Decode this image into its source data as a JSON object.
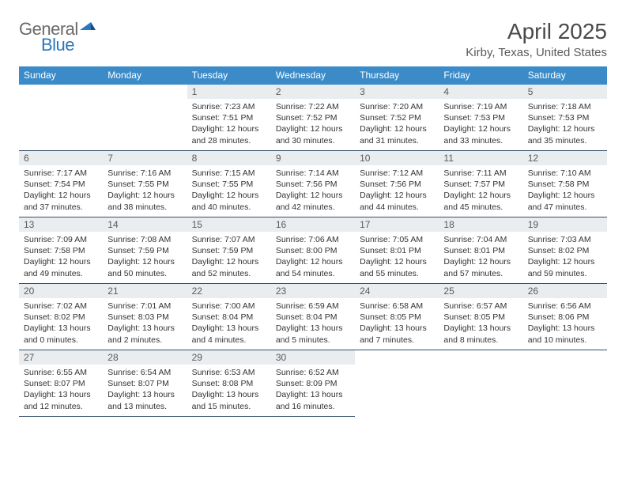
{
  "brand": {
    "part1": "General",
    "part2": "Blue"
  },
  "title": "April 2025",
  "location": "Kirby, Texas, United States",
  "colors": {
    "header_bg": "#3b8bc9",
    "header_text": "#ffffff",
    "daynum_bg": "#e9edf0",
    "border": "#344e6a",
    "logo_gray": "#6a6a6a",
    "logo_blue": "#2a77bb"
  },
  "weekdays": [
    "Sunday",
    "Monday",
    "Tuesday",
    "Wednesday",
    "Thursday",
    "Friday",
    "Saturday"
  ],
  "leading_blanks": 2,
  "days": [
    {
      "n": "1",
      "sunrise": "7:23 AM",
      "sunset": "7:51 PM",
      "daylight": "12 hours and 28 minutes."
    },
    {
      "n": "2",
      "sunrise": "7:22 AM",
      "sunset": "7:52 PM",
      "daylight": "12 hours and 30 minutes."
    },
    {
      "n": "3",
      "sunrise": "7:20 AM",
      "sunset": "7:52 PM",
      "daylight": "12 hours and 31 minutes."
    },
    {
      "n": "4",
      "sunrise": "7:19 AM",
      "sunset": "7:53 PM",
      "daylight": "12 hours and 33 minutes."
    },
    {
      "n": "5",
      "sunrise": "7:18 AM",
      "sunset": "7:53 PM",
      "daylight": "12 hours and 35 minutes."
    },
    {
      "n": "6",
      "sunrise": "7:17 AM",
      "sunset": "7:54 PM",
      "daylight": "12 hours and 37 minutes."
    },
    {
      "n": "7",
      "sunrise": "7:16 AM",
      "sunset": "7:55 PM",
      "daylight": "12 hours and 38 minutes."
    },
    {
      "n": "8",
      "sunrise": "7:15 AM",
      "sunset": "7:55 PM",
      "daylight": "12 hours and 40 minutes."
    },
    {
      "n": "9",
      "sunrise": "7:14 AM",
      "sunset": "7:56 PM",
      "daylight": "12 hours and 42 minutes."
    },
    {
      "n": "10",
      "sunrise": "7:12 AM",
      "sunset": "7:56 PM",
      "daylight": "12 hours and 44 minutes."
    },
    {
      "n": "11",
      "sunrise": "7:11 AM",
      "sunset": "7:57 PM",
      "daylight": "12 hours and 45 minutes."
    },
    {
      "n": "12",
      "sunrise": "7:10 AM",
      "sunset": "7:58 PM",
      "daylight": "12 hours and 47 minutes."
    },
    {
      "n": "13",
      "sunrise": "7:09 AM",
      "sunset": "7:58 PM",
      "daylight": "12 hours and 49 minutes."
    },
    {
      "n": "14",
      "sunrise": "7:08 AM",
      "sunset": "7:59 PM",
      "daylight": "12 hours and 50 minutes."
    },
    {
      "n": "15",
      "sunrise": "7:07 AM",
      "sunset": "7:59 PM",
      "daylight": "12 hours and 52 minutes."
    },
    {
      "n": "16",
      "sunrise": "7:06 AM",
      "sunset": "8:00 PM",
      "daylight": "12 hours and 54 minutes."
    },
    {
      "n": "17",
      "sunrise": "7:05 AM",
      "sunset": "8:01 PM",
      "daylight": "12 hours and 55 minutes."
    },
    {
      "n": "18",
      "sunrise": "7:04 AM",
      "sunset": "8:01 PM",
      "daylight": "12 hours and 57 minutes."
    },
    {
      "n": "19",
      "sunrise": "7:03 AM",
      "sunset": "8:02 PM",
      "daylight": "12 hours and 59 minutes."
    },
    {
      "n": "20",
      "sunrise": "7:02 AM",
      "sunset": "8:02 PM",
      "daylight": "13 hours and 0 minutes."
    },
    {
      "n": "21",
      "sunrise": "7:01 AM",
      "sunset": "8:03 PM",
      "daylight": "13 hours and 2 minutes."
    },
    {
      "n": "22",
      "sunrise": "7:00 AM",
      "sunset": "8:04 PM",
      "daylight": "13 hours and 4 minutes."
    },
    {
      "n": "23",
      "sunrise": "6:59 AM",
      "sunset": "8:04 PM",
      "daylight": "13 hours and 5 minutes."
    },
    {
      "n": "24",
      "sunrise": "6:58 AM",
      "sunset": "8:05 PM",
      "daylight": "13 hours and 7 minutes."
    },
    {
      "n": "25",
      "sunrise": "6:57 AM",
      "sunset": "8:05 PM",
      "daylight": "13 hours and 8 minutes."
    },
    {
      "n": "26",
      "sunrise": "6:56 AM",
      "sunset": "8:06 PM",
      "daylight": "13 hours and 10 minutes."
    },
    {
      "n": "27",
      "sunrise": "6:55 AM",
      "sunset": "8:07 PM",
      "daylight": "13 hours and 12 minutes."
    },
    {
      "n": "28",
      "sunrise": "6:54 AM",
      "sunset": "8:07 PM",
      "daylight": "13 hours and 13 minutes."
    },
    {
      "n": "29",
      "sunrise": "6:53 AM",
      "sunset": "8:08 PM",
      "daylight": "13 hours and 15 minutes."
    },
    {
      "n": "30",
      "sunrise": "6:52 AM",
      "sunset": "8:09 PM",
      "daylight": "13 hours and 16 minutes."
    }
  ],
  "labels": {
    "sunrise": "Sunrise:",
    "sunset": "Sunset:",
    "daylight": "Daylight:"
  }
}
